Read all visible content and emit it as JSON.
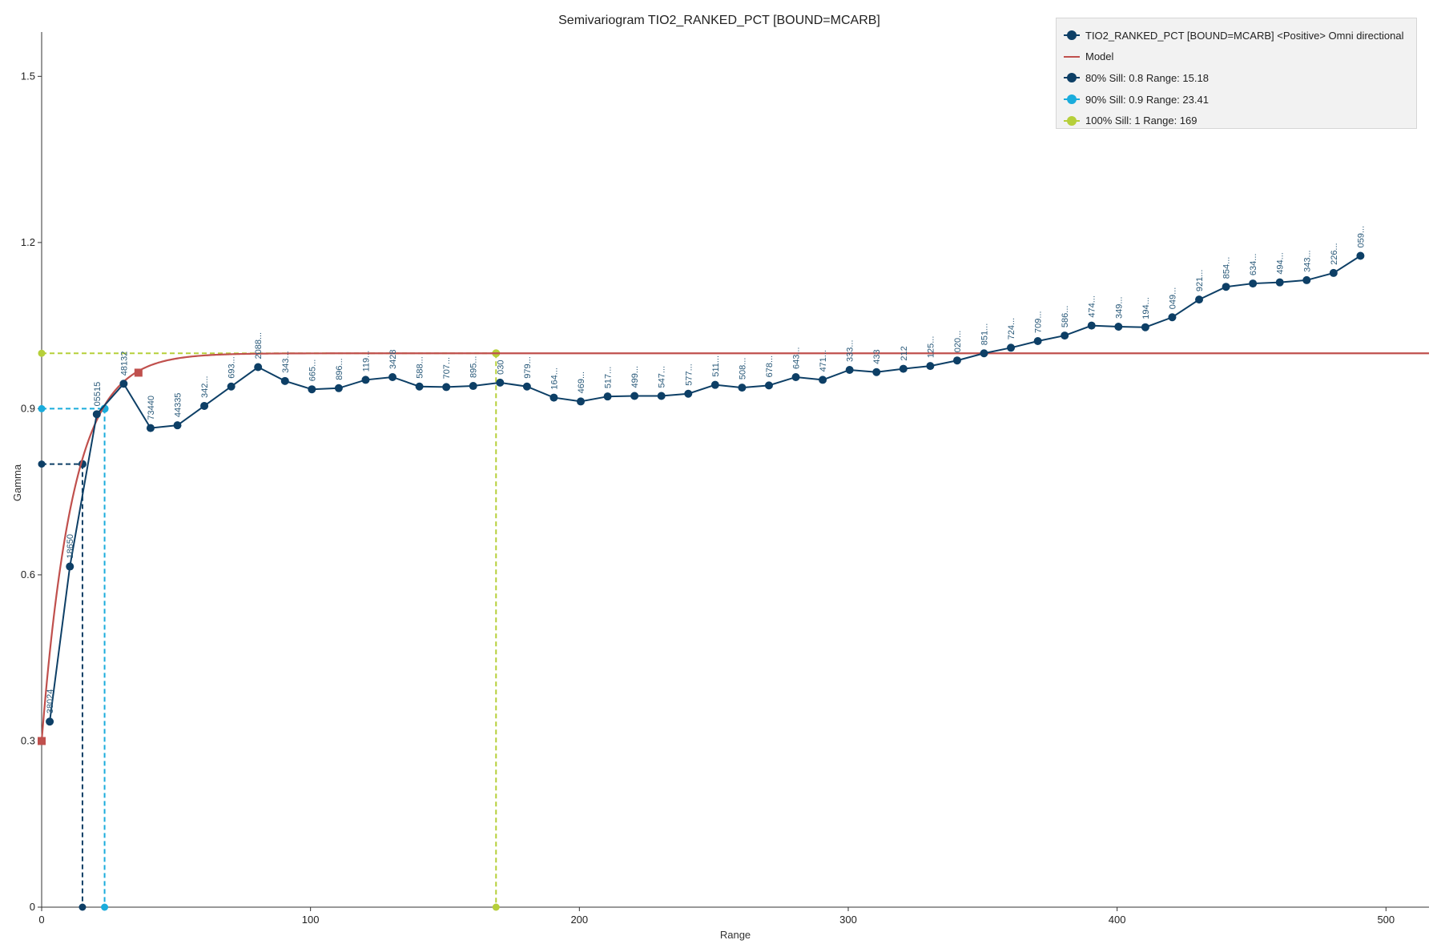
{
  "chart_data": {
    "type": "line",
    "title": "Semivariogram TIO2_RANKED_PCT [BOUND=MCARB]",
    "xlabel": "Range",
    "ylabel": "Gamma",
    "xlim": [
      0,
      516
    ],
    "ylim": [
      0,
      1.58
    ],
    "x_ticks": [
      0,
      100,
      200,
      300,
      400,
      500
    ],
    "x_tick_labels": [
      "0",
      "100",
      "200",
      "300",
      "400",
      "500"
    ],
    "y_ticks": [
      0,
      0.3,
      0.6,
      0.9,
      1.2,
      1.5
    ],
    "y_tick_labels": [
      "0",
      "0.3",
      "0.6",
      "0.9",
      "1.2",
      "1.5"
    ],
    "grid": false,
    "legend_position": "top-right",
    "colors": {
      "experimental": "#0d3f66",
      "model": "#c0504d",
      "sill80": "#0d3f66",
      "sill90": "#1aacdc",
      "sill100": "#b6cf3a"
    },
    "experimental": {
      "name": "TIO2_RANKED_PCT [BOUND=MCARB] <Positive> Omni directional",
      "x": [
        3,
        10.5,
        20.5,
        30.5,
        40.5,
        50.5,
        60.5,
        70.5,
        80.5,
        90.5,
        100.5,
        110.5,
        120.5,
        130.5,
        140.5,
        150.5,
        160.5,
        170.5,
        180.5,
        190.5,
        200.5,
        210.5,
        220.5,
        230.5,
        240.5,
        250.5,
        260.5,
        270.5,
        280.5,
        290.5,
        300.5,
        310.5,
        320.5,
        330.5,
        340.5,
        350.5,
        360.5,
        370.5,
        380.5,
        390.5,
        400.5,
        410.5,
        420.5,
        430.5,
        440.5,
        450.5,
        460.5,
        470.5,
        480.5,
        490.5
      ],
      "y": [
        0.335,
        0.615,
        0.89,
        0.945,
        0.865,
        0.87,
        0.905,
        0.94,
        0.975,
        0.95,
        0.935,
        0.937,
        0.952,
        0.957,
        0.94,
        0.939,
        0.941,
        0.947,
        0.94,
        0.92,
        0.913,
        0.922,
        0.923,
        0.923,
        0.927,
        0.943,
        0.938,
        0.942,
        0.957,
        0.952,
        0.97,
        0.966,
        0.972,
        0.977,
        0.987,
        1.0,
        1.01,
        1.022,
        1.032,
        1.05,
        1.048,
        1.047,
        1.065,
        1.097,
        1.12,
        1.126,
        1.128,
        1.132,
        1.145,
        1.176
      ],
      "labels": [
        "38024",
        "18650",
        "05515",
        "48132",
        "73440",
        "44335",
        "342...",
        "693...",
        "2088...",
        "343...",
        "665...",
        "896...",
        "119...",
        "3428",
        "588...",
        "707...",
        "895...",
        "030",
        "979...",
        "164...",
        "469...",
        "517...",
        "499...",
        "547...",
        "577...",
        "511...",
        "508...",
        "678...",
        "643...",
        "471...",
        "333...",
        "433",
        "212",
        "125...",
        "020...",
        "851...",
        "724...",
        "709...",
        "586...",
        "474...",
        "349...",
        "194...",
        "049...",
        "921...",
        "854...",
        "634...",
        "494...",
        "343...",
        "226...",
        "059..."
      ]
    },
    "model": {
      "name": "Model",
      "type": "exponential",
      "nugget": 0.3,
      "sill": 1.0,
      "practical_range": 35,
      "square_markers": [
        [
          0,
          0.3
        ],
        [
          36,
          0.965
        ]
      ]
    },
    "sills": [
      {
        "name": "80% Sill: 0.8 Range: 15.18",
        "y": 0.8,
        "x": 15.18
      },
      {
        "name": "90% Sill: 0.9 Range: 23.41",
        "y": 0.9,
        "x": 23.41
      },
      {
        "name": "100% Sill: 1 Range: 169",
        "y": 1.0,
        "x": 169
      }
    ]
  },
  "legend": {
    "entries": [
      {
        "label": "TIO2_RANKED_PCT [BOUND=MCARB] <Positive> Omni directional",
        "symbol": "line-dot",
        "color": "#0d3f66"
      },
      {
        "label": "Model",
        "symbol": "line",
        "color": "#c0504d"
      },
      {
        "label": "80% Sill: 0.8 Range: 15.18",
        "symbol": "line-dot",
        "color": "#0d3f66"
      },
      {
        "label": "90% Sill: 0.9 Range: 23.41",
        "symbol": "line-dot",
        "color": "#1aacdc"
      },
      {
        "label": "100% Sill: 1 Range: 169",
        "symbol": "line-dot",
        "color": "#b6cf3a"
      }
    ]
  }
}
